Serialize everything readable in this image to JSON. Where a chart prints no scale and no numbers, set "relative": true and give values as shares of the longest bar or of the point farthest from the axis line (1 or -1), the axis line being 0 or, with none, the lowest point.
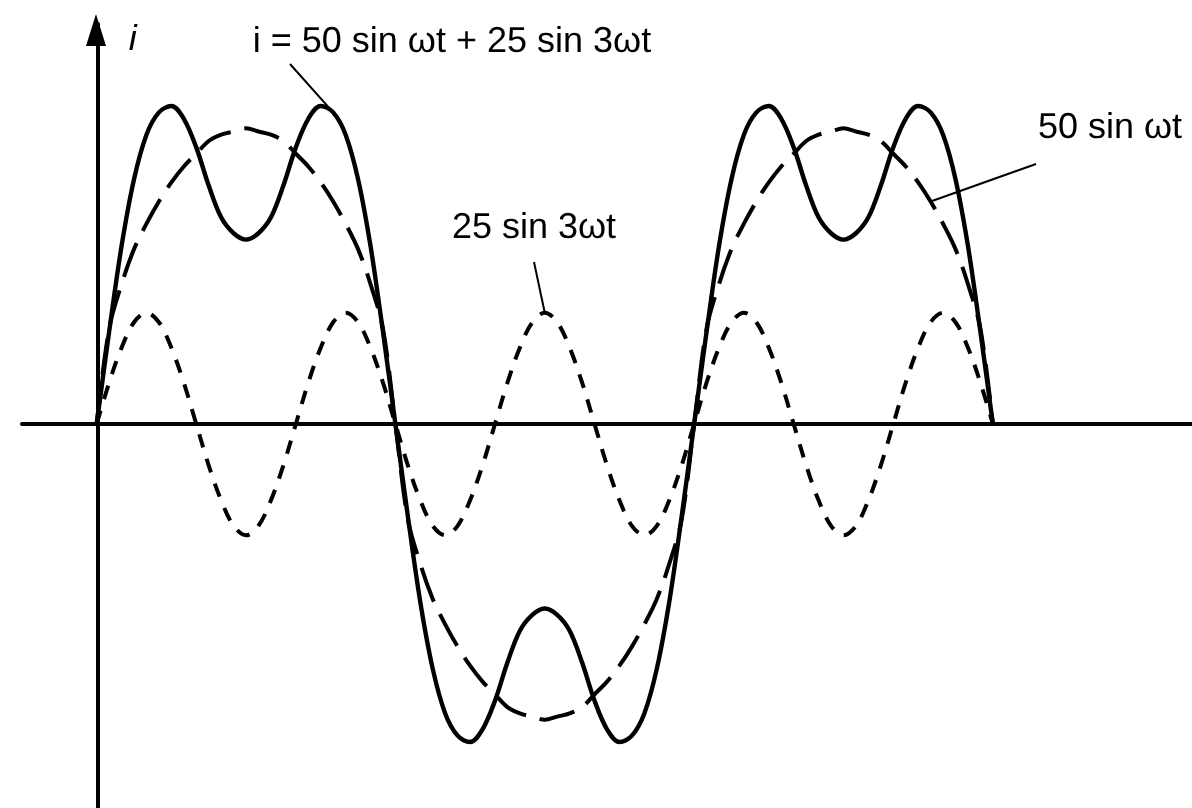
{
  "chart_data": {
    "type": "line",
    "relative": true,
    "ylabel": "i",
    "marker": "none",
    "categories": [
      null,
      null,
      null,
      null,
      null,
      null,
      null,
      null,
      null,
      null,
      null,
      null,
      null,
      null,
      null,
      null,
      null,
      null,
      null,
      null,
      null,
      null,
      null,
      null,
      null,
      null,
      null,
      null,
      null,
      null,
      null,
      null,
      null,
      null,
      null,
      null,
      null,
      null,
      null,
      null,
      null,
      null,
      null,
      null,
      null,
      null,
      null,
      null,
      null,
      null,
      null,
      null,
      null,
      null,
      null,
      null,
      null,
      null,
      null,
      null,
      null,
      null,
      null,
      null,
      null,
      null,
      null,
      null,
      null,
      null,
      null,
      null,
      null,
      null,
      null,
      null,
      null,
      null,
      null,
      null,
      null,
      null,
      null,
      null,
      null,
      null,
      null,
      null,
      null,
      null,
      null,
      null,
      null,
      null,
      null
    ],
    "series": [
      {
        "name": "i = 50 sin ωt + 25 sin 3ωt",
        "color": "#000000",
        "line_style": "solid",
        "values": [
          null,
          null,
          null,
          null,
          null,
          null,
          0,
          0.29,
          0.56,
          0.77,
          0.91,
          0.98,
          1,
          0.96,
          0.87,
          0.75,
          0.65,
          0.6,
          0.58,
          0.6,
          0.65,
          0.75,
          0.87,
          0.96,
          1,
          0.98,
          0.91,
          0.77,
          0.56,
          0.29,
          0,
          -0.29,
          -0.56,
          -0.77,
          -0.91,
          -0.98,
          -1,
          -0.96,
          -0.87,
          -0.75,
          -0.65,
          -0.6,
          -0.58,
          -0.6,
          -0.65,
          -0.75,
          -0.87,
          -0.96,
          -1,
          -0.98,
          -0.91,
          -0.77,
          -0.56,
          -0.29,
          0,
          0.29,
          0.56,
          0.77,
          0.91,
          0.98,
          1,
          0.96,
          0.87,
          0.75,
          0.65,
          0.6,
          0.58,
          0.6,
          0.65,
          0.75,
          0.87,
          0.96,
          1,
          0.98,
          0.91,
          0.77,
          0.56,
          0.29,
          0,
          null,
          null,
          null,
          null,
          null,
          null,
          null,
          null,
          null,
          null,
          null,
          null,
          null,
          null,
          null,
          null
        ]
      },
      {
        "name": "50 sin ωt",
        "color": "#000000",
        "line_style": "dashed",
        "values": [
          null,
          null,
          null,
          null,
          null,
          null,
          0,
          0.3,
          0.44,
          0.55,
          0.63,
          0.7,
          0.76,
          0.81,
          0.85,
          0.89,
          0.91,
          0.92,
          0.93,
          0.92,
          0.91,
          0.89,
          0.85,
          0.81,
          0.76,
          0.7,
          0.63,
          0.55,
          0.44,
          0.3,
          0,
          -0.3,
          -0.44,
          -0.55,
          -0.63,
          -0.7,
          -0.76,
          -0.81,
          -0.85,
          -0.89,
          -0.91,
          -0.92,
          -0.93,
          -0.92,
          -0.91,
          -0.89,
          -0.85,
          -0.81,
          -0.76,
          -0.7,
          -0.63,
          -0.55,
          -0.44,
          -0.3,
          0,
          0.3,
          0.44,
          0.55,
          0.63,
          0.7,
          0.76,
          0.81,
          0.85,
          0.89,
          0.91,
          0.92,
          0.93,
          0.92,
          0.91,
          0.89,
          0.85,
          0.81,
          0.76,
          0.7,
          0.63,
          0.55,
          0.44,
          0.3,
          0,
          null,
          null,
          null,
          null,
          null,
          null,
          null,
          null,
          null,
          null,
          null,
          null,
          null,
          null,
          null,
          null
        ]
      },
      {
        "name": "25 sin 3ωt",
        "color": "#000000",
        "line_style": "dashed",
        "values": [
          null,
          null,
          null,
          null,
          null,
          null,
          0,
          0.13,
          0.24,
          0.32,
          0.35,
          0.32,
          0.24,
          0.13,
          0,
          -0.13,
          -0.24,
          -0.32,
          -0.35,
          -0.32,
          -0.24,
          -0.13,
          0,
          0.13,
          0.24,
          0.32,
          0.35,
          0.32,
          0.24,
          0.13,
          0,
          -0.13,
          -0.24,
          -0.32,
          -0.35,
          -0.32,
          -0.24,
          -0.13,
          0,
          0.13,
          0.24,
          0.32,
          0.35,
          0.32,
          0.24,
          0.13,
          0,
          -0.13,
          -0.24,
          -0.32,
          -0.35,
          -0.32,
          -0.24,
          -0.13,
          0,
          0.13,
          0.24,
          0.32,
          0.35,
          0.32,
          0.24,
          0.13,
          0,
          -0.13,
          -0.24,
          -0.32,
          -0.35,
          -0.32,
          -0.24,
          -0.13,
          0,
          0.13,
          0.24,
          0.32,
          0.35,
          0.32,
          0.24,
          0.13,
          0,
          null,
          null,
          null,
          null,
          null,
          null,
          null,
          null,
          null,
          null,
          null,
          null,
          null,
          null,
          null,
          null
        ]
      }
    ]
  }
}
